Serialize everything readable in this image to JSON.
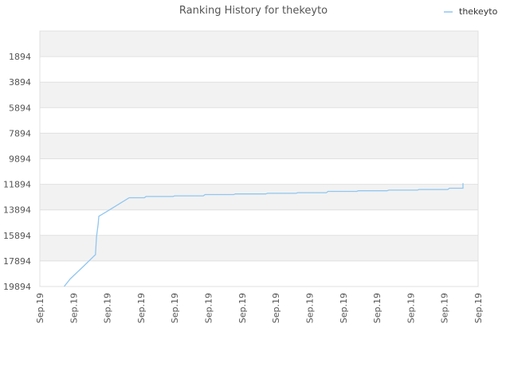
{
  "chart_data": {
    "type": "line",
    "title": "Ranking History for thekeyto",
    "xlabel": "",
    "ylabel": "",
    "inverted_y": true,
    "ylim": [
      19894,
      -106
    ],
    "y_ticks": [
      1894,
      3894,
      5894,
      7894,
      9894,
      11894,
      13894,
      15894,
      17894,
      19894
    ],
    "x_tick_labels": [
      "Sep.19",
      "Sep.19",
      "Sep.19",
      "Sep.19",
      "Sep.19",
      "Sep.19",
      "Sep.19",
      "Sep.19",
      "Sep.19",
      "Sep.19",
      "Sep.19",
      "Sep.19",
      "Sep.19",
      "Sep.19"
    ],
    "xlim": [
      0,
      13
    ],
    "grid": true,
    "legend_position": "top-right",
    "colors": {
      "line": "#90c6f0",
      "band": "#f2f2f2",
      "grid": "#e0e0e0"
    },
    "series": [
      {
        "name": "thekeyto",
        "points": [
          [
            0.72,
            19894
          ],
          [
            0.9,
            19300
          ],
          [
            1.3,
            18300
          ],
          [
            1.65,
            17400
          ],
          [
            1.68,
            16000
          ],
          [
            1.73,
            15000
          ],
          [
            1.75,
            14400
          ],
          [
            2.0,
            14000
          ],
          [
            2.65,
            12950
          ],
          [
            3.1,
            12950
          ],
          [
            3.15,
            12850
          ],
          [
            3.95,
            12850
          ],
          [
            4.0,
            12800
          ],
          [
            4.85,
            12800
          ],
          [
            4.9,
            12700
          ],
          [
            5.75,
            12700
          ],
          [
            5.8,
            12650
          ],
          [
            6.7,
            12650
          ],
          [
            6.75,
            12600
          ],
          [
            7.6,
            12600
          ],
          [
            7.65,
            12550
          ],
          [
            8.5,
            12550
          ],
          [
            8.55,
            12450
          ],
          [
            9.4,
            12450
          ],
          [
            9.45,
            12400
          ],
          [
            10.3,
            12400
          ],
          [
            10.35,
            12350
          ],
          [
            11.2,
            12350
          ],
          [
            11.25,
            12300
          ],
          [
            12.1,
            12300
          ],
          [
            12.15,
            12200
          ],
          [
            12.55,
            12200
          ],
          [
            12.55,
            11800
          ]
        ]
      }
    ]
  }
}
